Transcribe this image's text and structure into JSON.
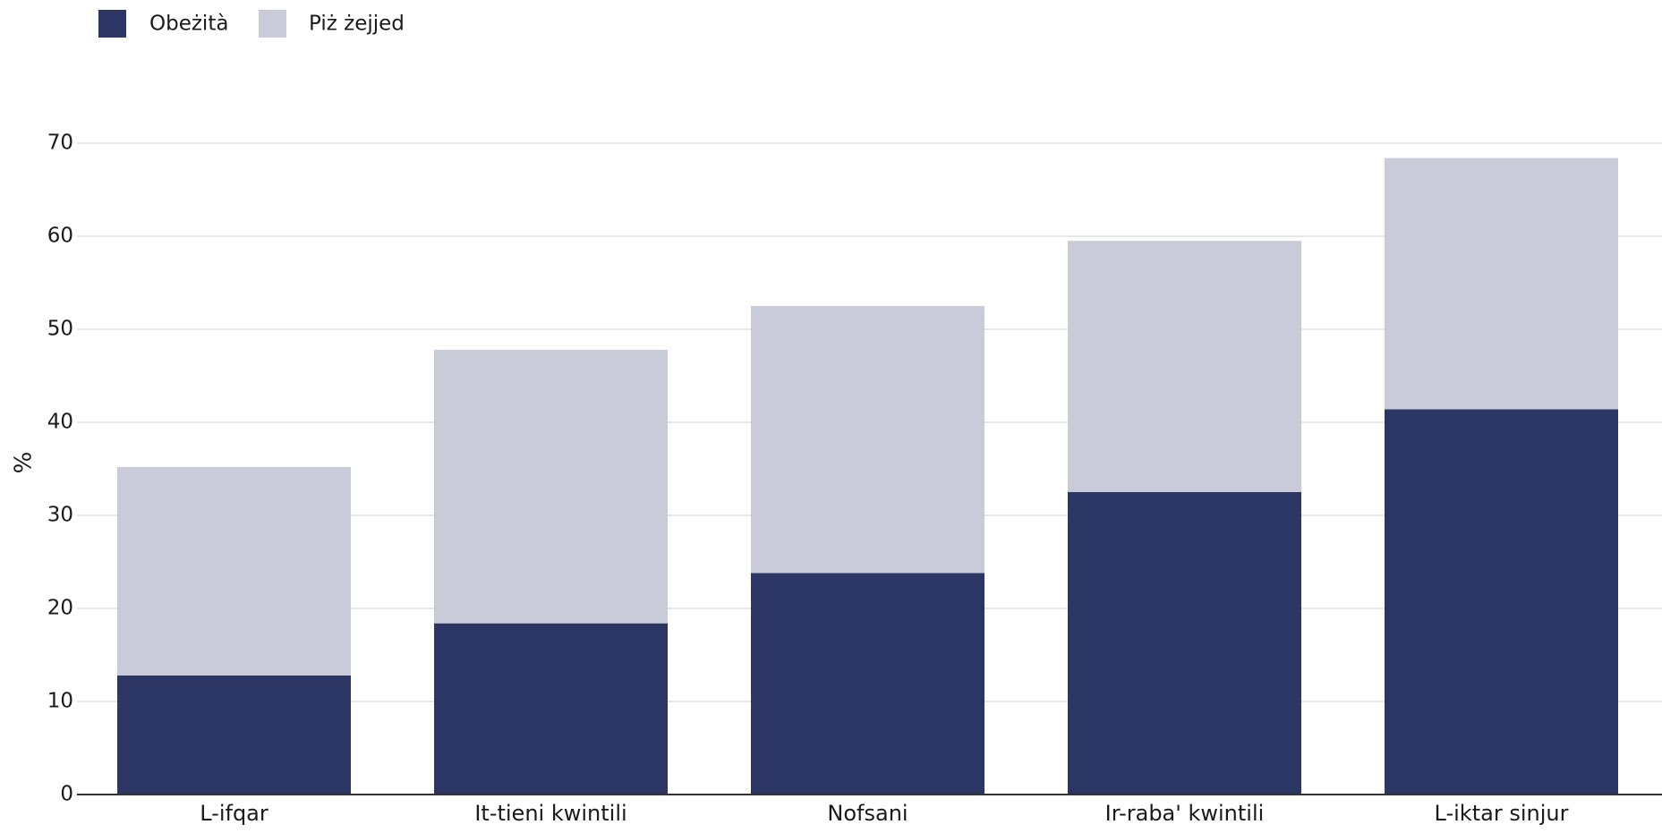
{
  "chart_data": {
    "type": "bar",
    "stacked": true,
    "categories": [
      "L-ifqar",
      "It-tieni kwintili",
      "Nofsani",
      "Ir-raba' kwintili",
      "L-iktar sinjur"
    ],
    "series": [
      {
        "name": "Obeżità",
        "values": [
          12.8,
          18.4,
          23.8,
          32.5,
          41.4
        ],
        "color": "#2b3664"
      },
      {
        "name": "Piż żejjed",
        "values": [
          22.4,
          29.4,
          28.7,
          27.0,
          27.0
        ],
        "color": "#c9ccd8"
      }
    ],
    "ylabel": "%",
    "xlabel": "",
    "ylim": [
      0,
      70
    ],
    "yticks": [
      0,
      10,
      20,
      30,
      40,
      50,
      60,
      70
    ],
    "grid": true,
    "legend_position": "top-left"
  }
}
